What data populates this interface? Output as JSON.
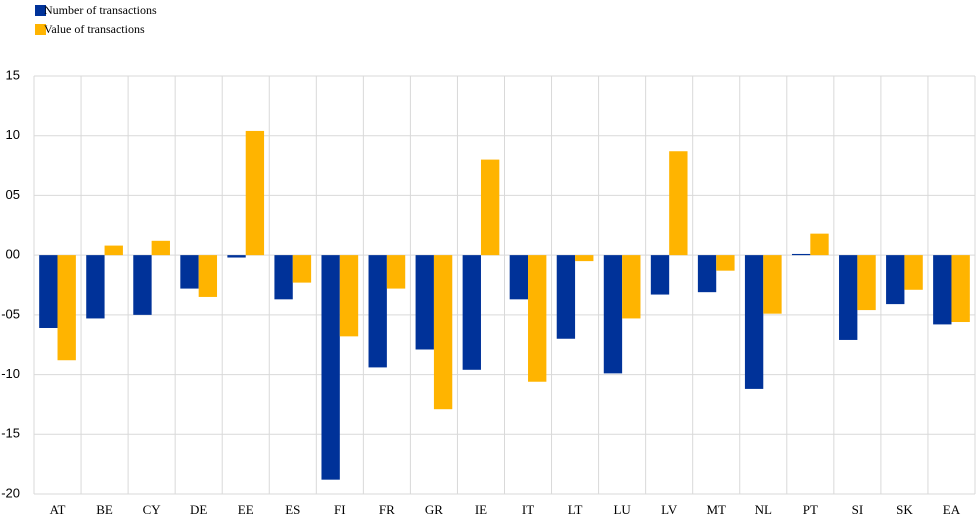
{
  "chart_data": {
    "type": "bar",
    "categories": [
      "AT",
      "BE",
      "CY",
      "DE",
      "EE",
      "ES",
      "FI",
      "FR",
      "GR",
      "IE",
      "IT",
      "LT",
      "LU",
      "LV",
      "MT",
      "NL",
      "PT",
      "SI",
      "SK",
      "EA"
    ],
    "series": [
      {
        "name": "Number of transactions",
        "color": "#003299",
        "values": [
          -6.1,
          -5.3,
          -5.0,
          -2.8,
          -0.2,
          -3.7,
          -18.8,
          -9.4,
          -7.9,
          -9.6,
          -3.7,
          -7.0,
          -9.9,
          -3.3,
          -3.1,
          -11.2,
          0.1,
          -7.1,
          -4.1,
          -5.8
        ]
      },
      {
        "name": "Value of transactions",
        "color": "#ffb400",
        "values": [
          -8.8,
          0.8,
          1.2,
          -3.5,
          10.4,
          -2.3,
          -6.8,
          -2.8,
          -12.9,
          8.0,
          -10.6,
          -0.5,
          -5.3,
          8.7,
          -1.3,
          -4.9,
          1.8,
          -4.6,
          -2.9,
          -5.6
        ]
      }
    ],
    "ylim": [
      -20,
      15
    ],
    "yticks": [
      15,
      10,
      {
        "value": 5,
        "label": "05"
      },
      {
        "value": 0,
        "label": "00"
      },
      {
        "value": -5,
        "label": "-05"
      },
      -10,
      -15,
      -20
    ],
    "grid": true,
    "legend": "top-left"
  }
}
